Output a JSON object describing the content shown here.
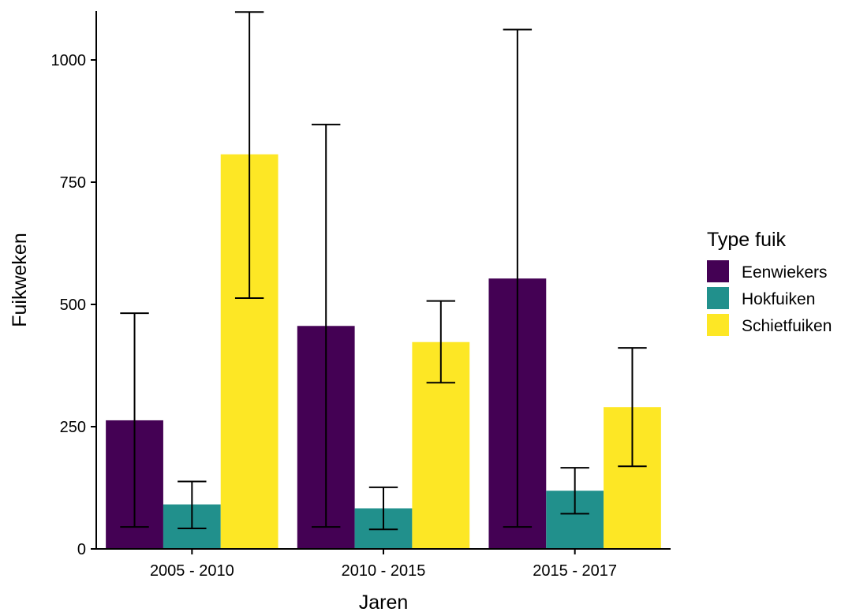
{
  "chart_data": {
    "type": "bar",
    "title": "",
    "xlabel": "Jaren",
    "ylabel": "Fuikweken",
    "ylim": [
      0,
      1100
    ],
    "yticks": [
      0,
      250,
      500,
      750,
      1000
    ],
    "grid": false,
    "legend_position": "right",
    "legend_title": "Type fuik",
    "categories": [
      "2005 - 2010",
      "2010 - 2015",
      "2015 - 2017"
    ],
    "series": [
      {
        "name": "Eenwiekers",
        "color": "#440154",
        "values": [
          263,
          456,
          553
        ],
        "error_low": [
          45,
          45,
          45
        ],
        "error_high": [
          482,
          868,
          1062
        ]
      },
      {
        "name": "Hokfuiken",
        "color": "#21908C",
        "values": [
          91,
          83,
          119
        ],
        "error_low": [
          42,
          40,
          72
        ],
        "error_high": [
          138,
          126,
          166
        ]
      },
      {
        "name": "Schietfuiken",
        "color": "#FDE725",
        "values": [
          807,
          423,
          290
        ],
        "error_low": [
          513,
          340,
          169
        ],
        "error_high": [
          1098,
          507,
          411
        ]
      }
    ]
  }
}
